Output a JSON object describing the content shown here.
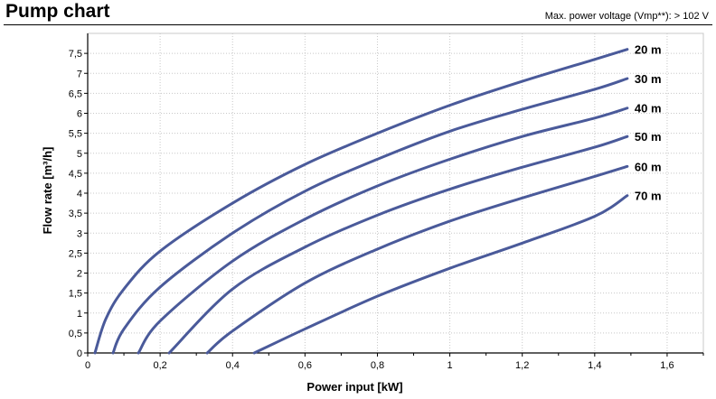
{
  "header": {
    "title": "Pump chart",
    "subtitle": "Max. power voltage (Vmp**): > 102 V"
  },
  "colors": {
    "curve": "#4a5a9a",
    "grid": "#c8c8c8",
    "axis": "#000000"
  },
  "chart_data": {
    "type": "line",
    "title": "Pump chart",
    "xlabel": "Power input [kW]",
    "ylabel": "Flow rate [m³/h]",
    "xlim": [
      0,
      1.7
    ],
    "ylim": [
      0,
      8
    ],
    "grid": true,
    "x_ticks": [
      "0",
      "0,2",
      "0,4",
      "0,6",
      "0,8",
      "1",
      "1,2",
      "1,4",
      "1,6"
    ],
    "y_ticks": [
      "0",
      "0,5",
      "1",
      "1,5",
      "2",
      "2,5",
      "3",
      "3,5",
      "4",
      "4,5",
      "5",
      "5,5",
      "6",
      "6,5",
      "7",
      "7,5"
    ],
    "series": [
      {
        "name": "20 m",
        "x": [
          0.02,
          0.05,
          0.1,
          0.2,
          0.4,
          0.6,
          0.8,
          1.0,
          1.2,
          1.4,
          1.49
        ],
        "y": [
          0,
          0.85,
          1.6,
          2.55,
          3.75,
          4.72,
          5.5,
          6.2,
          6.8,
          7.35,
          7.6
        ]
      },
      {
        "name": "30 m",
        "x": [
          0.07,
          0.1,
          0.2,
          0.4,
          0.6,
          0.8,
          1.0,
          1.2,
          1.4,
          1.49
        ],
        "y": [
          0,
          0.6,
          1.65,
          3.0,
          4.05,
          4.85,
          5.55,
          6.1,
          6.6,
          6.87
        ]
      },
      {
        "name": "40 m",
        "x": [
          0.14,
          0.2,
          0.4,
          0.6,
          0.8,
          1.0,
          1.2,
          1.4,
          1.49
        ],
        "y": [
          0,
          0.8,
          2.3,
          3.35,
          4.18,
          4.85,
          5.42,
          5.88,
          6.13
        ]
      },
      {
        "name": "50 m",
        "x": [
          0.225,
          0.4,
          0.6,
          0.8,
          1.0,
          1.2,
          1.4,
          1.49
        ],
        "y": [
          0,
          1.6,
          2.65,
          3.45,
          4.1,
          4.65,
          5.15,
          5.42
        ]
      },
      {
        "name": "60 m",
        "x": [
          0.33,
          0.4,
          0.6,
          0.8,
          1.0,
          1.2,
          1.4,
          1.49
        ],
        "y": [
          0,
          0.55,
          1.75,
          2.6,
          3.3,
          3.88,
          4.42,
          4.67
        ]
      },
      {
        "name": "70 m",
        "x": [
          0.46,
          0.6,
          0.8,
          1.0,
          1.2,
          1.4,
          1.49
        ],
        "y": [
          0,
          0.6,
          1.42,
          2.12,
          2.75,
          3.42,
          3.94
        ]
      }
    ]
  }
}
